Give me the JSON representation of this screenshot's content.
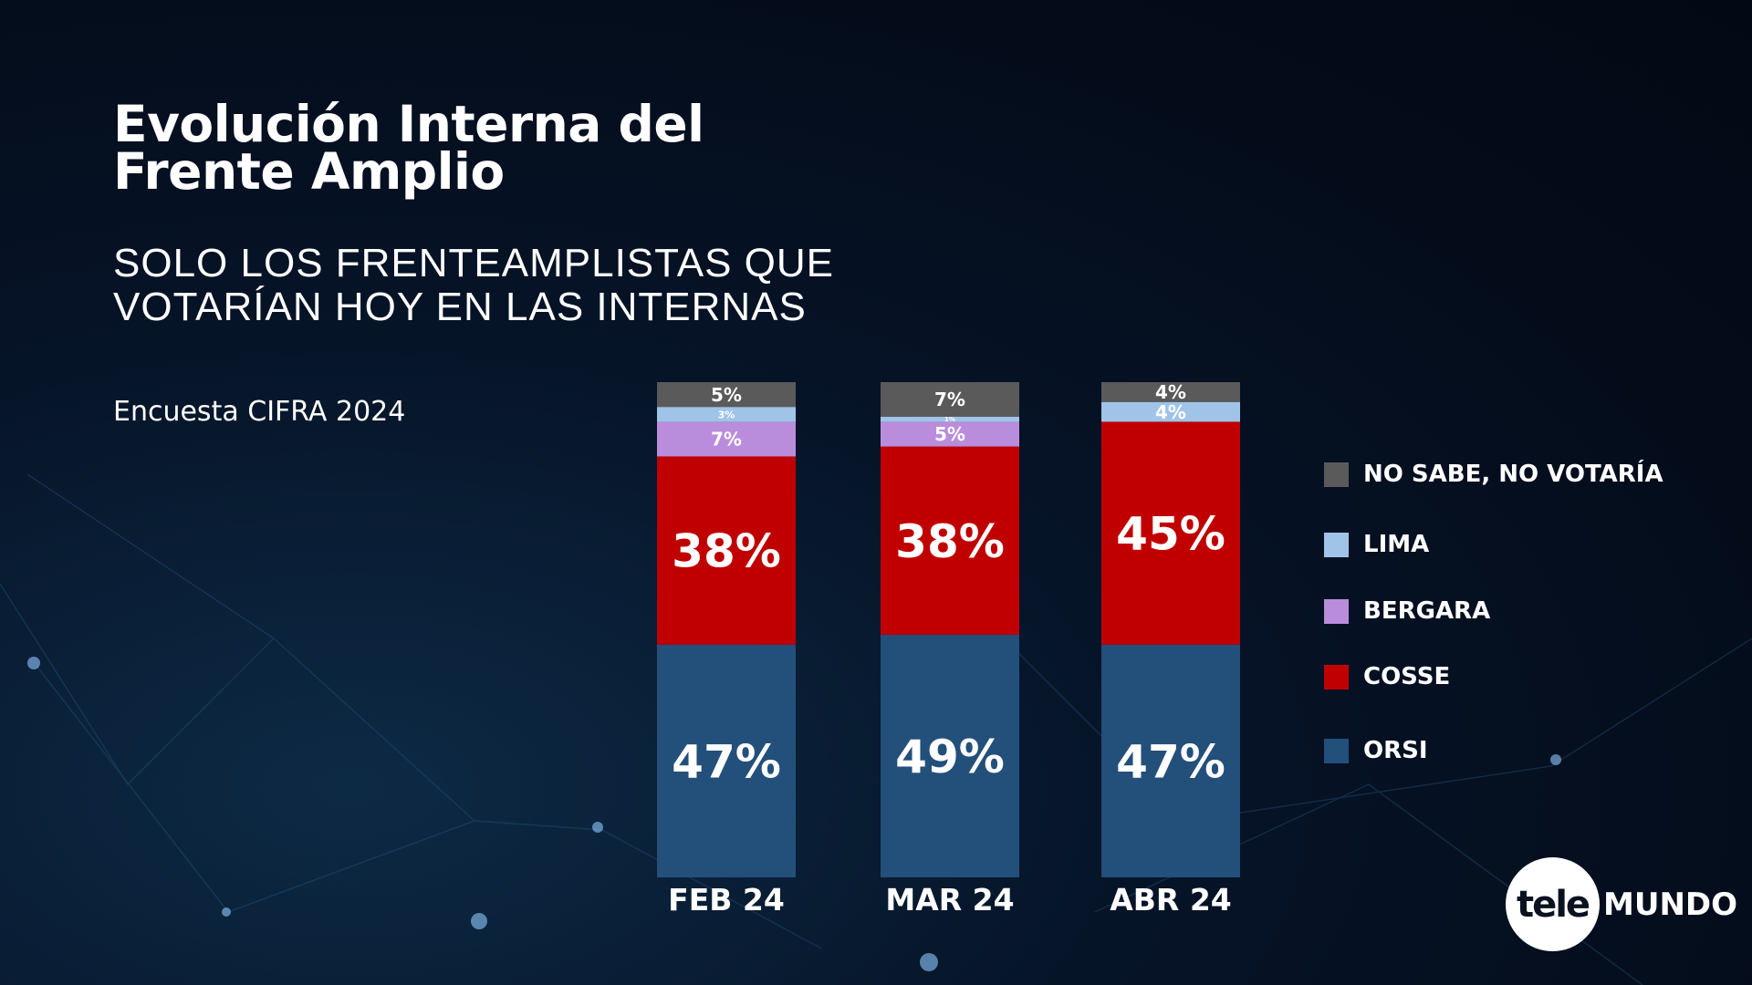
{
  "title": "Evolución Interna del Frente Amplio",
  "subtitle": "SOLO LOS FRENTEAMPLISTAS QUE VOTARÍAN HOY EN LAS INTERNAS",
  "source": "Encuesta CIFRA 2024",
  "logo": {
    "part1": "tele",
    "part2": "MUNDO"
  },
  "chart_data": {
    "type": "bar",
    "stacked": true,
    "categories": [
      "FEB 24",
      "MAR 24",
      "ABR 24"
    ],
    "series": [
      {
        "name": "ORSI",
        "color": "#234f7b",
        "values": [
          47,
          49,
          47
        ]
      },
      {
        "name": "COSSE",
        "color": "#c00000",
        "values": [
          38,
          38,
          45
        ]
      },
      {
        "name": "BERGARA",
        "color": "#b98ddb",
        "values": [
          7,
          5,
          0
        ]
      },
      {
        "name": "LIMA",
        "color": "#9fc4e8",
        "values": [
          3,
          1,
          4
        ]
      },
      {
        "name": "NO SABE, NO VOTARÍA",
        "color": "#5a5a5a",
        "values": [
          5,
          7,
          4
        ]
      }
    ],
    "ylim": [
      0,
      100
    ],
    "unit": "%",
    "legend": "right"
  }
}
